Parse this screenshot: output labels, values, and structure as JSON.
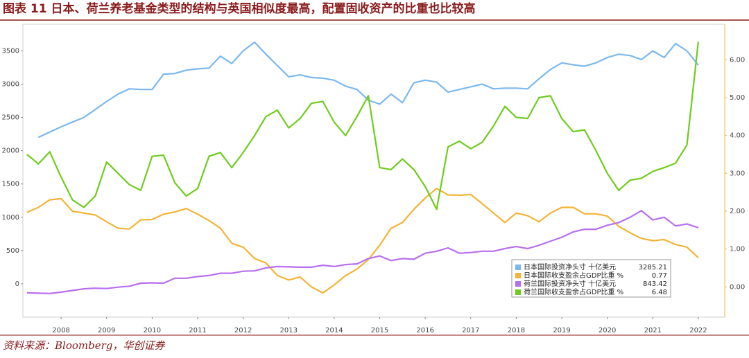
{
  "title": "图表 11 日本、荷兰养老基金类型的结构与英国相似度最高，配置固收资产的比重也比较高",
  "source": "资料来源：Bloomberg，华创证券",
  "chart_data": {
    "type": "line",
    "x": [
      2007.75,
      2008,
      2008.25,
      2008.5,
      2008.75,
      2009,
      2009.25,
      2009.5,
      2009.75,
      2010,
      2010.25,
      2010.5,
      2010.75,
      2011,
      2011.25,
      2011.5,
      2011.75,
      2012,
      2012.25,
      2012.5,
      2012.75,
      2013,
      2013.25,
      2013.5,
      2013.75,
      2014,
      2014.25,
      2014.5,
      2014.75,
      2015,
      2015.25,
      2015.5,
      2015.75,
      2016,
      2016.25,
      2016.5,
      2016.75,
      2017,
      2017.25,
      2017.5,
      2017.75,
      2018,
      2018.25,
      2018.5,
      2018.75,
      2019,
      2019.25,
      2019.5,
      2019.75,
      2020,
      2020.25,
      2020.5,
      2020.75,
      2021,
      2021.25,
      2021.5,
      2021.75,
      2022,
      2022.25,
      2022.5
    ],
    "xlim": [
      2007.66,
      2023.08
    ],
    "xticks": [
      {
        "value": 2008.5,
        "label": "2008"
      },
      {
        "value": 2009.5,
        "label": "2009"
      },
      {
        "value": 2010.5,
        "label": "2010"
      },
      {
        "value": 2011.5,
        "label": "2011"
      },
      {
        "value": 2012.5,
        "label": "2012"
      },
      {
        "value": 2013.5,
        "label": "2013"
      },
      {
        "value": 2014.5,
        "label": "2014"
      },
      {
        "value": 2015.5,
        "label": "2015"
      },
      {
        "value": 2016.5,
        "label": "2016"
      },
      {
        "value": 2017.5,
        "label": "2017"
      },
      {
        "value": 2018.5,
        "label": "2018"
      },
      {
        "value": 2019.5,
        "label": "2019"
      },
      {
        "value": 2020.5,
        "label": "2020"
      },
      {
        "value": 2021.5,
        "label": "2021"
      },
      {
        "value": 2022.5,
        "label": "2022"
      }
    ],
    "ylim": [
      -500,
      3900
    ],
    "yticks": [
      0,
      500,
      1000,
      1500,
      2000,
      2500,
      3000,
      3500
    ],
    "y2lim": [
      -0.8,
      6.94
    ],
    "y2ticks": [
      {
        "value": 0,
        "label": "0.00"
      },
      {
        "value": 1,
        "label": "1.00"
      },
      {
        "value": 2,
        "label": "2.00"
      },
      {
        "value": 3,
        "label": "3.00"
      },
      {
        "value": 4,
        "label": "4.00"
      },
      {
        "value": 5,
        "label": "5.00"
      },
      {
        "value": 6,
        "label": "6.00"
      }
    ],
    "series": [
      {
        "name": "日本国际投资净头寸 十亿美元",
        "color": "#7ab8f0",
        "axis": "y",
        "values": [
          null,
          2200,
          2280,
          2360,
          2430,
          2500,
          2620,
          2740,
          2850,
          2930,
          2920,
          2920,
          3150,
          3160,
          3210,
          3230,
          3240,
          3420,
          3310,
          3500,
          3630,
          3450,
          3280,
          3110,
          3140,
          3100,
          3090,
          3060,
          2970,
          2920,
          2760,
          2700,
          2850,
          2720,
          3020,
          3060,
          3030,
          2880,
          2920,
          2960,
          3000,
          2930,
          2940,
          2940,
          2930,
          3080,
          3220,
          3320,
          3290,
          3270,
          3320,
          3400,
          3450,
          3430,
          3370,
          3500,
          3400,
          3610,
          3500,
          3285.21
        ]
      },
      {
        "name": "日本国际收支盈余占GDP比重 %",
        "color": "#f5b335",
        "axis": "y2",
        "values": [
          1.97,
          2.1,
          2.3,
          2.33,
          2.0,
          1.95,
          1.9,
          1.72,
          1.55,
          1.53,
          1.77,
          1.78,
          1.92,
          1.98,
          2.07,
          1.92,
          1.75,
          1.55,
          1.15,
          1.05,
          0.75,
          0.63,
          0.3,
          0.18,
          0.26,
          0.0,
          -0.16,
          0.05,
          0.3,
          0.47,
          0.72,
          1.1,
          1.55,
          1.7,
          2.05,
          2.35,
          2.6,
          2.43,
          2.42,
          2.44,
          2.2,
          1.95,
          1.7,
          1.95,
          1.88,
          1.72,
          1.95,
          2.1,
          2.1,
          1.93,
          1.93,
          1.87,
          1.6,
          1.43,
          1.28,
          1.22,
          1.25,
          1.12,
          1.05,
          0.77
        ]
      },
      {
        "name": "荷兰国际投资净头寸 十亿美元",
        "color": "#b86ef0",
        "axis": "y",
        "values": [
          -135,
          -140,
          -145,
          -125,
          -100,
          -75,
          -65,
          -70,
          -50,
          -35,
          10,
          15,
          10,
          85,
          85,
          110,
          125,
          160,
          160,
          190,
          195,
          240,
          260,
          255,
          250,
          250,
          280,
          260,
          290,
          300,
          380,
          420,
          350,
          380,
          370,
          460,
          490,
          540,
          460,
          470,
          490,
          490,
          530,
          560,
          530,
          580,
          640,
          700,
          780,
          820,
          820,
          880,
          920,
          1000,
          1100,
          960,
          1000,
          870,
          900,
          843.42
        ]
      },
      {
        "name": "荷兰国际收支盈余占GDP比重 %",
        "color": "#6ecc1c",
        "axis": "y2",
        "values": [
          3.5,
          3.25,
          3.57,
          2.9,
          2.3,
          2.1,
          2.4,
          3.3,
          3.0,
          2.7,
          2.55,
          3.45,
          3.48,
          2.75,
          2.4,
          2.6,
          3.45,
          3.55,
          3.15,
          3.55,
          4.0,
          4.5,
          4.67,
          4.2,
          4.45,
          4.85,
          4.9,
          4.35,
          4.0,
          4.5,
          5.05,
          3.15,
          3.1,
          3.38,
          3.1,
          2.65,
          2.05,
          3.7,
          3.85,
          3.65,
          3.82,
          4.25,
          4.77,
          4.48,
          4.45,
          5.0,
          5.05,
          4.45,
          4.1,
          4.15,
          3.6,
          3.0,
          2.55,
          2.82,
          2.87,
          3.05,
          3.15,
          3.27,
          3.75,
          6.48
        ]
      }
    ]
  }
}
